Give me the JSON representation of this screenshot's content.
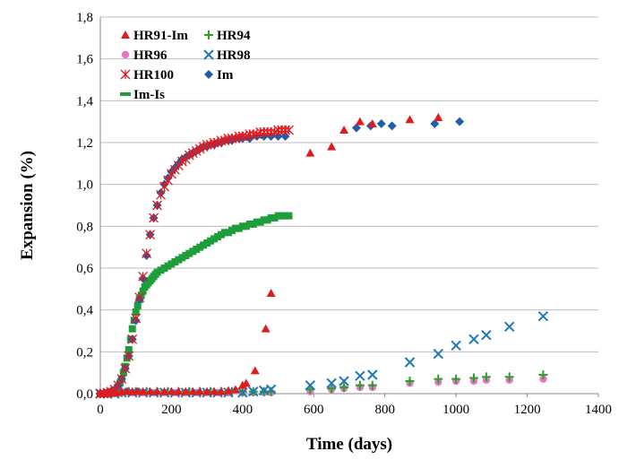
{
  "chart_data": {
    "type": "scatter",
    "xlabel": "Time (days)",
    "ylabel": "Expansion (%)",
    "xlim": [
      0,
      1400
    ],
    "ylim": [
      0,
      1.8
    ],
    "xticks": [
      "0",
      "200",
      "400",
      "600",
      "800",
      "1000",
      "1200",
      "1400"
    ],
    "yticks": [
      "0,0",
      "0,2",
      "0,4",
      "0,6",
      "0,8",
      "1,0",
      "1,2",
      "1,4",
      "1,6",
      "1,8"
    ],
    "grid": "horizontal",
    "legend_position": "top-left",
    "legend": [
      "HR91-Im",
      "HR94",
      "HR96",
      "HR98",
      "HR100",
      "Im",
      "Im-Is"
    ],
    "series": [
      {
        "name": "HR91-Im",
        "marker": "triangle",
        "color": "#e31a1c",
        "points": [
          [
            0,
            0
          ],
          [
            15,
            0
          ],
          [
            30,
            0.005
          ],
          [
            45,
            0.005
          ],
          [
            60,
            0.01
          ],
          [
            75,
            0.01
          ],
          [
            90,
            0.01
          ],
          [
            105,
            0.01
          ],
          [
            120,
            0.01
          ],
          [
            140,
            0.01
          ],
          [
            160,
            0.01
          ],
          [
            180,
            0.01
          ],
          [
            200,
            0.01
          ],
          [
            220,
            0.01
          ],
          [
            240,
            0.01
          ],
          [
            260,
            0.01
          ],
          [
            280,
            0.01
          ],
          [
            300,
            0.01
          ],
          [
            320,
            0.01
          ],
          [
            340,
            0.01
          ],
          [
            360,
            0.015
          ],
          [
            380,
            0.02
          ],
          [
            400,
            0.04
          ],
          [
            410,
            0.05
          ],
          [
            435,
            0.11
          ],
          [
            465,
            0.31
          ],
          [
            480,
            0.48
          ],
          [
            590,
            1.15
          ],
          [
            650,
            1.18
          ],
          [
            685,
            1.26
          ],
          [
            730,
            1.3
          ],
          [
            765,
            1.29
          ],
          [
            870,
            1.31
          ],
          [
            950,
            1.32
          ]
        ]
      },
      {
        "name": "HR94",
        "marker": "plus",
        "color": "#2ca02c",
        "points": [
          [
            0,
            0
          ],
          [
            20,
            0
          ],
          [
            40,
            0.005
          ],
          [
            60,
            0.005
          ],
          [
            80,
            0.01
          ],
          [
            100,
            0.01
          ],
          [
            130,
            0.01
          ],
          [
            160,
            0.01
          ],
          [
            190,
            0.01
          ],
          [
            220,
            0.01
          ],
          [
            250,
            0.01
          ],
          [
            280,
            0.01
          ],
          [
            310,
            0.01
          ],
          [
            340,
            0.01
          ],
          [
            370,
            0.01
          ],
          [
            400,
            0.01
          ],
          [
            430,
            0.01
          ],
          [
            460,
            0.01
          ],
          [
            480,
            0.01
          ],
          [
            590,
            0.02
          ],
          [
            650,
            0.025
          ],
          [
            685,
            0.03
          ],
          [
            730,
            0.04
          ],
          [
            765,
            0.04
          ],
          [
            870,
            0.06
          ],
          [
            950,
            0.07
          ],
          [
            1000,
            0.07
          ],
          [
            1050,
            0.075
          ],
          [
            1085,
            0.08
          ],
          [
            1150,
            0.08
          ],
          [
            1245,
            0.09
          ]
        ]
      },
      {
        "name": "HR96",
        "marker": "circle",
        "color": "#e377c2",
        "points": [
          [
            0,
            0
          ],
          [
            20,
            0
          ],
          [
            40,
            0
          ],
          [
            60,
            0.005
          ],
          [
            90,
            0.005
          ],
          [
            120,
            0.005
          ],
          [
            150,
            0.005
          ],
          [
            180,
            0.005
          ],
          [
            210,
            0.005
          ],
          [
            240,
            0.005
          ],
          [
            270,
            0.005
          ],
          [
            300,
            0.005
          ],
          [
            330,
            0.005
          ],
          [
            360,
            0.005
          ],
          [
            400,
            0.005
          ],
          [
            430,
            0.005
          ],
          [
            460,
            0.005
          ],
          [
            480,
            0.005
          ],
          [
            590,
            0.01
          ],
          [
            650,
            0.02
          ],
          [
            685,
            0.025
          ],
          [
            730,
            0.03
          ],
          [
            765,
            0.03
          ],
          [
            870,
            0.05
          ],
          [
            950,
            0.055
          ],
          [
            1000,
            0.06
          ],
          [
            1050,
            0.06
          ],
          [
            1085,
            0.065
          ],
          [
            1150,
            0.065
          ],
          [
            1245,
            0.07
          ]
        ]
      },
      {
        "name": "HR98",
        "marker": "x",
        "color": "#1f77b4",
        "points": [
          [
            0,
            0
          ],
          [
            20,
            0
          ],
          [
            40,
            0
          ],
          [
            60,
            0.005
          ],
          [
            90,
            0.005
          ],
          [
            120,
            0.005
          ],
          [
            150,
            0.005
          ],
          [
            180,
            0.005
          ],
          [
            210,
            0.005
          ],
          [
            240,
            0.005
          ],
          [
            270,
            0.005
          ],
          [
            300,
            0.005
          ],
          [
            330,
            0.005
          ],
          [
            360,
            0.005
          ],
          [
            400,
            0.005
          ],
          [
            430,
            0.01
          ],
          [
            460,
            0.015
          ],
          [
            480,
            0.02
          ],
          [
            590,
            0.04
          ],
          [
            650,
            0.05
          ],
          [
            685,
            0.06
          ],
          [
            730,
            0.085
          ],
          [
            765,
            0.09
          ],
          [
            870,
            0.15
          ],
          [
            950,
            0.19
          ],
          [
            1000,
            0.23
          ],
          [
            1050,
            0.26
          ],
          [
            1085,
            0.28
          ],
          [
            1150,
            0.32
          ],
          [
            1245,
            0.37
          ]
        ]
      },
      {
        "name": "HR100",
        "marker": "star",
        "color": "#e31a1c",
        "points": [
          [
            0,
            0
          ],
          [
            10,
            0
          ],
          [
            20,
            0.005
          ],
          [
            30,
            0.01
          ],
          [
            40,
            0.02
          ],
          [
            50,
            0.04
          ],
          [
            60,
            0.07
          ],
          [
            70,
            0.12
          ],
          [
            80,
            0.18
          ],
          [
            90,
            0.26
          ],
          [
            100,
            0.36
          ],
          [
            110,
            0.46
          ],
          [
            120,
            0.56
          ],
          [
            130,
            0.67
          ],
          [
            140,
            0.76
          ],
          [
            150,
            0.84
          ],
          [
            160,
            0.9
          ],
          [
            170,
            0.95
          ],
          [
            180,
            0.99
          ],
          [
            190,
            1.02
          ],
          [
            200,
            1.05
          ],
          [
            210,
            1.07
          ],
          [
            220,
            1.09
          ],
          [
            230,
            1.11
          ],
          [
            240,
            1.12
          ],
          [
            250,
            1.14
          ],
          [
            260,
            1.15
          ],
          [
            270,
            1.16
          ],
          [
            280,
            1.17
          ],
          [
            290,
            1.18
          ],
          [
            300,
            1.19
          ],
          [
            310,
            1.19
          ],
          [
            320,
            1.2
          ],
          [
            330,
            1.2
          ],
          [
            340,
            1.21
          ],
          [
            350,
            1.21
          ],
          [
            360,
            1.22
          ],
          [
            370,
            1.22
          ],
          [
            380,
            1.22
          ],
          [
            390,
            1.23
          ],
          [
            400,
            1.23
          ],
          [
            410,
            1.23
          ],
          [
            420,
            1.24
          ],
          [
            430,
            1.24
          ],
          [
            440,
            1.24
          ],
          [
            450,
            1.25
          ],
          [
            460,
            1.25
          ],
          [
            470,
            1.25
          ],
          [
            480,
            1.25
          ],
          [
            490,
            1.25
          ],
          [
            500,
            1.26
          ],
          [
            510,
            1.26
          ],
          [
            520,
            1.26
          ],
          [
            530,
            1.26
          ]
        ]
      },
      {
        "name": "Im",
        "marker": "diamond",
        "color": "#1f5fa8",
        "points": [
          [
            0,
            0
          ],
          [
            10,
            0
          ],
          [
            20,
            0.005
          ],
          [
            30,
            0.01
          ],
          [
            40,
            0.02
          ],
          [
            50,
            0.04
          ],
          [
            60,
            0.07
          ],
          [
            70,
            0.12
          ],
          [
            80,
            0.18
          ],
          [
            90,
            0.26
          ],
          [
            100,
            0.35
          ],
          [
            110,
            0.45
          ],
          [
            120,
            0.55
          ],
          [
            130,
            0.66
          ],
          [
            140,
            0.76
          ],
          [
            150,
            0.84
          ],
          [
            160,
            0.9
          ],
          [
            170,
            0.96
          ],
          [
            180,
            1.0
          ],
          [
            190,
            1.03
          ],
          [
            200,
            1.06
          ],
          [
            210,
            1.08
          ],
          [
            220,
            1.1
          ],
          [
            230,
            1.12
          ],
          [
            240,
            1.13
          ],
          [
            250,
            1.14
          ],
          [
            260,
            1.15
          ],
          [
            270,
            1.16
          ],
          [
            280,
            1.17
          ],
          [
            290,
            1.18
          ],
          [
            300,
            1.18
          ],
          [
            310,
            1.19
          ],
          [
            320,
            1.19
          ],
          [
            330,
            1.2
          ],
          [
            340,
            1.2
          ],
          [
            350,
            1.21
          ],
          [
            360,
            1.21
          ],
          [
            370,
            1.21
          ],
          [
            380,
            1.22
          ],
          [
            390,
            1.22
          ],
          [
            400,
            1.22
          ],
          [
            420,
            1.22
          ],
          [
            440,
            1.23
          ],
          [
            460,
            1.23
          ],
          [
            480,
            1.23
          ],
          [
            500,
            1.23
          ],
          [
            520,
            1.23
          ],
          [
            720,
            1.27
          ],
          [
            760,
            1.28
          ],
          [
            790,
            1.29
          ],
          [
            820,
            1.28
          ],
          [
            940,
            1.29
          ],
          [
            1010,
            1.3
          ]
        ]
      },
      {
        "name": "Im-Is",
        "marker": "dash",
        "color": "#1e9e3a",
        "points": [
          [
            0,
            0
          ],
          [
            10,
            0
          ],
          [
            20,
            0.005
          ],
          [
            30,
            0.01
          ],
          [
            40,
            0.015
          ],
          [
            50,
            0.03
          ],
          [
            55,
            0.05
          ],
          [
            60,
            0.07
          ],
          [
            65,
            0.1
          ],
          [
            70,
            0.13
          ],
          [
            75,
            0.17
          ],
          [
            80,
            0.21
          ],
          [
            85,
            0.26
          ],
          [
            90,
            0.31
          ],
          [
            95,
            0.35
          ],
          [
            100,
            0.39
          ],
          [
            105,
            0.42
          ],
          [
            110,
            0.45
          ],
          [
            115,
            0.47
          ],
          [
            120,
            0.49
          ],
          [
            125,
            0.51
          ],
          [
            130,
            0.52
          ],
          [
            135,
            0.53
          ],
          [
            140,
            0.54
          ],
          [
            145,
            0.55
          ],
          [
            150,
            0.56
          ],
          [
            155,
            0.57
          ],
          [
            160,
            0.58
          ],
          [
            170,
            0.59
          ],
          [
            180,
            0.6
          ],
          [
            190,
            0.61
          ],
          [
            200,
            0.62
          ],
          [
            210,
            0.63
          ],
          [
            220,
            0.64
          ],
          [
            230,
            0.65
          ],
          [
            240,
            0.66
          ],
          [
            250,
            0.67
          ],
          [
            260,
            0.68
          ],
          [
            270,
            0.69
          ],
          [
            280,
            0.7
          ],
          [
            290,
            0.71
          ],
          [
            300,
            0.72
          ],
          [
            310,
            0.73
          ],
          [
            320,
            0.74
          ],
          [
            330,
            0.75
          ],
          [
            340,
            0.76
          ],
          [
            350,
            0.77
          ],
          [
            360,
            0.77
          ],
          [
            370,
            0.78
          ],
          [
            380,
            0.79
          ],
          [
            390,
            0.79
          ],
          [
            400,
            0.8
          ],
          [
            410,
            0.8
          ],
          [
            420,
            0.81
          ],
          [
            430,
            0.81
          ],
          [
            440,
            0.82
          ],
          [
            450,
            0.82
          ],
          [
            460,
            0.83
          ],
          [
            470,
            0.83
          ],
          [
            480,
            0.84
          ],
          [
            490,
            0.84
          ],
          [
            500,
            0.85
          ],
          [
            510,
            0.85
          ],
          [
            520,
            0.85
          ],
          [
            530,
            0.85
          ]
        ]
      }
    ]
  }
}
